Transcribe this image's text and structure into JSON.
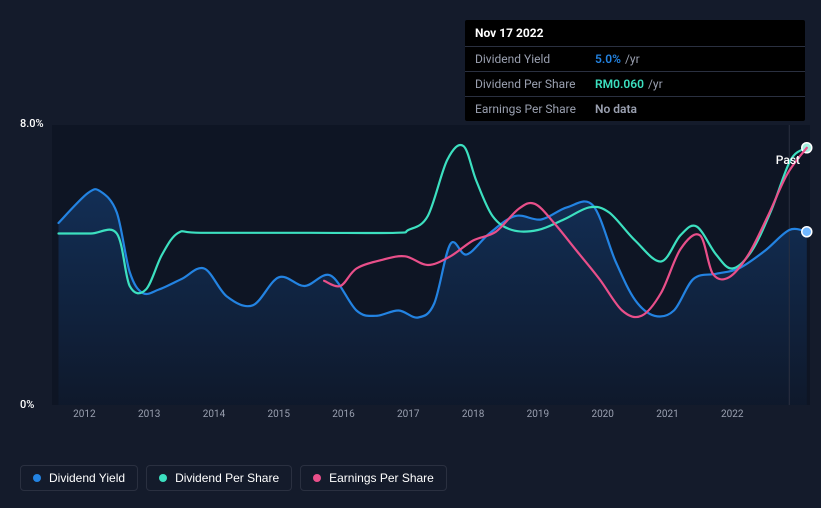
{
  "chart": {
    "type": "line",
    "background_color": "#141b2b",
    "plot_background_color": "#0e1524",
    "grid_color": "#1a2234",
    "ylim": [
      0,
      8
    ],
    "ylabel_suffix": "%",
    "yticks": [
      {
        "v": 0,
        "label": "0%"
      },
      {
        "v": 8,
        "label": "8.0%"
      }
    ],
    "x_range": [
      "2011.5",
      "2023.2"
    ],
    "xticks": [
      "2012",
      "2013",
      "2014",
      "2015",
      "2016",
      "2017",
      "2018",
      "2019",
      "2020",
      "2021",
      "2022"
    ],
    "past_label": "Past",
    "guide_line_x": 2022.88,
    "guide_line_color": "#1a2234",
    "area_fill": {
      "series_ref": "dividend_yield",
      "color": "#1a5fb4",
      "opacity": 0.22
    },
    "series": {
      "dividend_yield": {
        "label": "Dividend Yield",
        "type": "line",
        "color": "#2383e2",
        "end_marker_color": "#71b7ff",
        "end_marker_size": 5,
        "line_width": 2.2,
        "points": [
          {
            "x": 2011.6,
            "y": 5.2
          },
          {
            "x": 2012.05,
            "y": 6.05
          },
          {
            "x": 2012.25,
            "y": 6.1
          },
          {
            "x": 2012.5,
            "y": 5.5
          },
          {
            "x": 2012.7,
            "y": 3.8
          },
          {
            "x": 2012.9,
            "y": 3.2
          },
          {
            "x": 2013.15,
            "y": 3.3
          },
          {
            "x": 2013.5,
            "y": 3.6
          },
          {
            "x": 2013.85,
            "y": 3.9
          },
          {
            "x": 2014.2,
            "y": 3.1
          },
          {
            "x": 2014.6,
            "y": 2.85
          },
          {
            "x": 2015.0,
            "y": 3.65
          },
          {
            "x": 2015.4,
            "y": 3.4
          },
          {
            "x": 2015.8,
            "y": 3.7
          },
          {
            "x": 2016.2,
            "y": 2.7
          },
          {
            "x": 2016.5,
            "y": 2.55
          },
          {
            "x": 2016.85,
            "y": 2.7
          },
          {
            "x": 2017.15,
            "y": 2.5
          },
          {
            "x": 2017.4,
            "y": 2.9
          },
          {
            "x": 2017.65,
            "y": 4.6
          },
          {
            "x": 2017.9,
            "y": 4.3
          },
          {
            "x": 2018.25,
            "y": 4.9
          },
          {
            "x": 2018.65,
            "y": 5.4
          },
          {
            "x": 2019.05,
            "y": 5.3
          },
          {
            "x": 2019.45,
            "y": 5.65
          },
          {
            "x": 2019.85,
            "y": 5.7
          },
          {
            "x": 2020.2,
            "y": 4.1
          },
          {
            "x": 2020.5,
            "y": 3.0
          },
          {
            "x": 2020.8,
            "y": 2.55
          },
          {
            "x": 2021.1,
            "y": 2.7
          },
          {
            "x": 2021.4,
            "y": 3.6
          },
          {
            "x": 2021.75,
            "y": 3.75
          },
          {
            "x": 2022.1,
            "y": 3.9
          },
          {
            "x": 2022.5,
            "y": 4.4
          },
          {
            "x": 2022.88,
            "y": 5.0
          },
          {
            "x": 2023.15,
            "y": 4.95
          }
        ]
      },
      "dividend_per_share": {
        "label": "Dividend Per Share",
        "type": "line",
        "color": "#3ce0c0",
        "line_width": 2.2,
        "end_marker_color": "#a3f0df",
        "end_marker_size": 5,
        "points": [
          {
            "x": 2011.6,
            "y": 4.9
          },
          {
            "x": 2012.1,
            "y": 4.9
          },
          {
            "x": 2012.5,
            "y": 4.9
          },
          {
            "x": 2012.7,
            "y": 3.4
          },
          {
            "x": 2012.95,
            "y": 3.3
          },
          {
            "x": 2013.2,
            "y": 4.3
          },
          {
            "x": 2013.45,
            "y": 4.92
          },
          {
            "x": 2013.8,
            "y": 4.92
          },
          {
            "x": 2015.5,
            "y": 4.92
          },
          {
            "x": 2016.8,
            "y": 4.92
          },
          {
            "x": 2017.0,
            "y": 5.0
          },
          {
            "x": 2017.3,
            "y": 5.4
          },
          {
            "x": 2017.6,
            "y": 7.0
          },
          {
            "x": 2017.85,
            "y": 7.4
          },
          {
            "x": 2018.05,
            "y": 6.4
          },
          {
            "x": 2018.3,
            "y": 5.4
          },
          {
            "x": 2018.6,
            "y": 5.0
          },
          {
            "x": 2019.0,
            "y": 5.0
          },
          {
            "x": 2019.4,
            "y": 5.3
          },
          {
            "x": 2019.8,
            "y": 5.65
          },
          {
            "x": 2020.1,
            "y": 5.5
          },
          {
            "x": 2020.5,
            "y": 4.7
          },
          {
            "x": 2020.9,
            "y": 4.1
          },
          {
            "x": 2021.2,
            "y": 4.85
          },
          {
            "x": 2021.45,
            "y": 5.1
          },
          {
            "x": 2021.75,
            "y": 4.3
          },
          {
            "x": 2022.0,
            "y": 3.9
          },
          {
            "x": 2022.3,
            "y": 4.4
          },
          {
            "x": 2022.6,
            "y": 5.55
          },
          {
            "x": 2022.9,
            "y": 7.0
          },
          {
            "x": 2023.15,
            "y": 7.35
          }
        ]
      },
      "earnings_per_share": {
        "label": "Earnings Per Share",
        "type": "line",
        "color": "#e94f8a",
        "line_width": 2.2,
        "points": [
          {
            "x": 2015.7,
            "y": 3.55
          },
          {
            "x": 2015.95,
            "y": 3.4
          },
          {
            "x": 2016.2,
            "y": 3.9
          },
          {
            "x": 2016.6,
            "y": 4.15
          },
          {
            "x": 2016.95,
            "y": 4.25
          },
          {
            "x": 2017.3,
            "y": 4.0
          },
          {
            "x": 2017.65,
            "y": 4.25
          },
          {
            "x": 2018.0,
            "y": 4.7
          },
          {
            "x": 2018.35,
            "y": 4.95
          },
          {
            "x": 2018.7,
            "y": 5.6
          },
          {
            "x": 2018.95,
            "y": 5.75
          },
          {
            "x": 2019.25,
            "y": 5.2
          },
          {
            "x": 2019.6,
            "y": 4.4
          },
          {
            "x": 2019.95,
            "y": 3.6
          },
          {
            "x": 2020.3,
            "y": 2.7
          },
          {
            "x": 2020.6,
            "y": 2.55
          },
          {
            "x": 2020.9,
            "y": 3.2
          },
          {
            "x": 2021.2,
            "y": 4.45
          },
          {
            "x": 2021.5,
            "y": 4.85
          },
          {
            "x": 2021.7,
            "y": 3.75
          },
          {
            "x": 2021.95,
            "y": 3.65
          },
          {
            "x": 2022.25,
            "y": 4.3
          },
          {
            "x": 2022.55,
            "y": 5.4
          },
          {
            "x": 2022.85,
            "y": 6.6
          },
          {
            "x": 2023.15,
            "y": 7.35
          }
        ]
      }
    }
  },
  "tooltip": {
    "date": "Nov 17 2022",
    "rows": [
      {
        "label": "Dividend Yield",
        "value": "5.0%",
        "suffix": "/yr",
        "value_color": "#2383e2"
      },
      {
        "label": "Dividend Per Share",
        "value": "RM0.060",
        "suffix": "/yr",
        "value_color": "#3ce0c0"
      },
      {
        "label": "Earnings Per Share",
        "value": "No data",
        "suffix": "",
        "value_color": "#9aa0b0"
      }
    ]
  },
  "legend": [
    {
      "label": "Dividend Yield",
      "color": "#2383e2"
    },
    {
      "label": "Dividend Per Share",
      "color": "#3ce0c0"
    },
    {
      "label": "Earnings Per Share",
      "color": "#e94f8a"
    }
  ]
}
